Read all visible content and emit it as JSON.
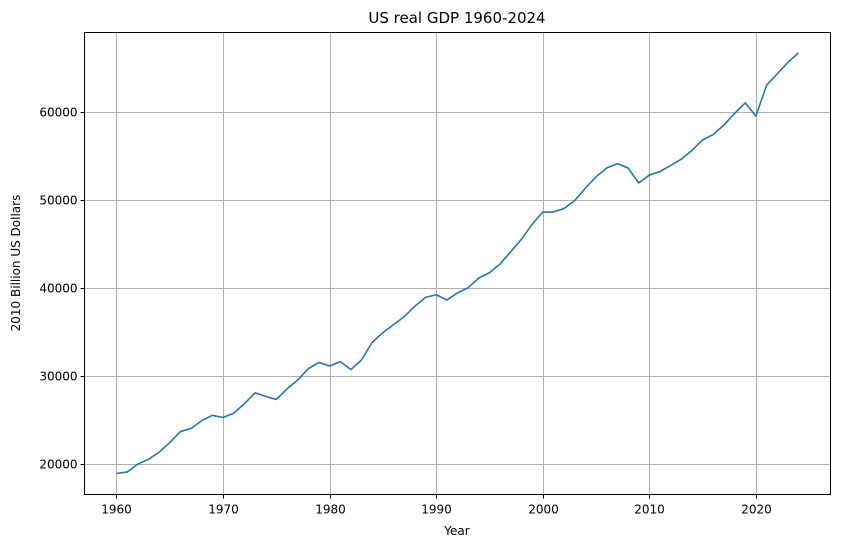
{
  "chart_data": {
    "type": "line",
    "title": "US real GDP 1960-2024",
    "xlabel": "Year",
    "ylabel": "2010 Billion US Dollars",
    "xlim": [
      1957,
      2027
    ],
    "ylim": [
      16500,
      69000
    ],
    "xticks": [
      1960,
      1970,
      1980,
      1990,
      2000,
      2010,
      2020
    ],
    "yticks": [
      20000,
      30000,
      40000,
      50000,
      60000
    ],
    "grid": true,
    "line_color": "#1f77b4",
    "series": [
      {
        "x": [
          1960,
          1961,
          1962,
          1963,
          1964,
          1965,
          1966,
          1967,
          1968,
          1969,
          1970,
          1971,
          1972,
          1973,
          1974,
          1975,
          1976,
          1977,
          1978,
          1979,
          1980,
          1981,
          1982,
          1983,
          1984,
          1985,
          1986,
          1987,
          1988,
          1989,
          1990,
          1991,
          1992,
          1993,
          1994,
          1995,
          1996,
          1997,
          1998,
          1999,
          2000,
          2001,
          2002,
          2003,
          2004,
          2005,
          2006,
          2007,
          2008,
          2009,
          2010,
          2011,
          2012,
          2013,
          2014,
          2015,
          2016,
          2017,
          2018,
          2019,
          2020,
          2021,
          2022,
          2023,
          2024
        ],
        "values": [
          18900,
          19050,
          19950,
          20500,
          21300,
          22400,
          23650,
          24000,
          24900,
          25500,
          25250,
          25750,
          26800,
          28050,
          27650,
          27300,
          28500,
          29500,
          30800,
          31500,
          31100,
          31600,
          30700,
          31800,
          33800,
          34900,
          35800,
          36700,
          37900,
          38900,
          39200,
          38600,
          39400,
          40000,
          41100,
          41700,
          42700,
          44100,
          45500,
          47200,
          48600,
          48600,
          49000,
          49900,
          51300,
          52600,
          53600,
          54100,
          53600,
          51900,
          52800,
          53200,
          53900,
          54600,
          55600,
          56800,
          57400,
          58500,
          59800,
          61000,
          59500,
          63000,
          64300,
          65600,
          66700
        ]
      }
    ]
  }
}
